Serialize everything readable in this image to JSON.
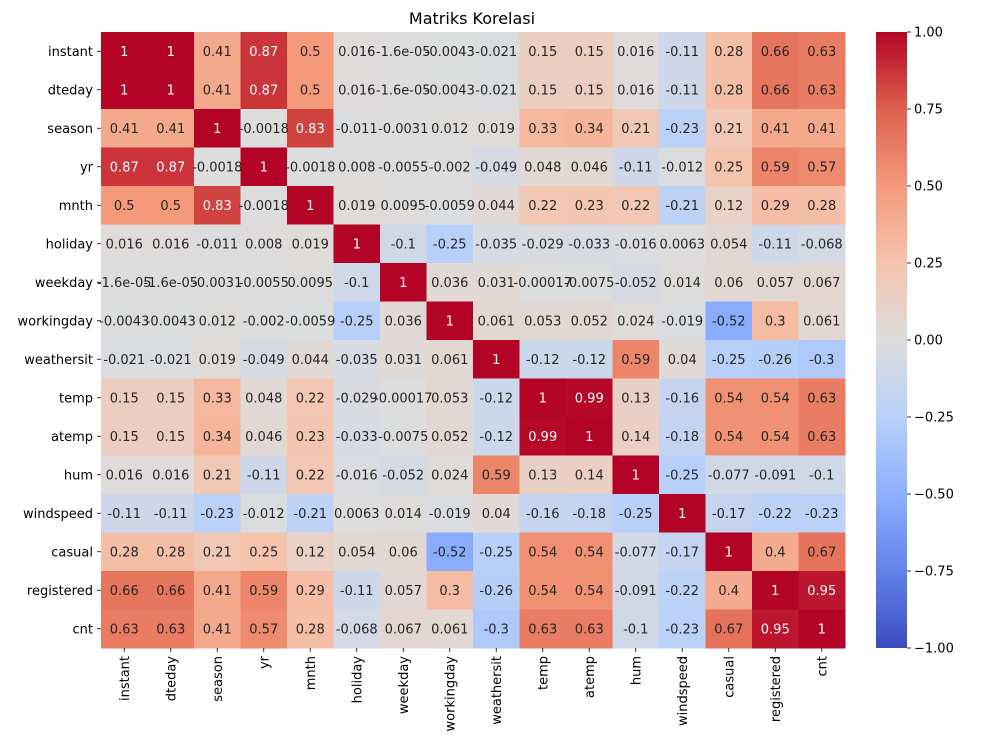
{
  "chart_data": {
    "type": "heatmap",
    "title": "Matriks Korelasi",
    "xlabel": "",
    "ylabel": "",
    "labels": [
      "instant",
      "dteday",
      "season",
      "yr",
      "mnth",
      "holiday",
      "weekday",
      "workingday",
      "weathersit",
      "temp",
      "atemp",
      "hum",
      "windspeed",
      "casual",
      "registered",
      "cnt"
    ],
    "matrix": [
      [
        1,
        1,
        0.41,
        0.87,
        0.5,
        0.016,
        -1.6e-05,
        -0.0043,
        -0.021,
        0.15,
        0.15,
        0.016,
        -0.11,
        0.28,
        0.66,
        0.63
      ],
      [
        1,
        1,
        0.41,
        0.87,
        0.5,
        0.016,
        -1.6e-05,
        -0.0043,
        -0.021,
        0.15,
        0.15,
        0.016,
        -0.11,
        0.28,
        0.66,
        0.63
      ],
      [
        0.41,
        0.41,
        1,
        -0.0018,
        0.83,
        -0.011,
        -0.0031,
        0.012,
        0.019,
        0.33,
        0.34,
        0.21,
        -0.23,
        0.21,
        0.41,
        0.41
      ],
      [
        0.87,
        0.87,
        -0.0018,
        1,
        -0.0018,
        0.008,
        -0.0055,
        -0.002,
        -0.049,
        0.048,
        0.046,
        -0.11,
        -0.012,
        0.25,
        0.59,
        0.57
      ],
      [
        0.5,
        0.5,
        0.83,
        -0.0018,
        1,
        0.019,
        0.0095,
        -0.0059,
        0.044,
        0.22,
        0.23,
        0.22,
        -0.21,
        0.12,
        0.29,
        0.28
      ],
      [
        0.016,
        0.016,
        -0.011,
        0.008,
        0.019,
        1,
        -0.1,
        -0.25,
        -0.035,
        -0.029,
        -0.033,
        -0.016,
        0.0063,
        0.054,
        -0.11,
        -0.068
      ],
      [
        -1.6e-05,
        -1.6e-05,
        -0.0031,
        -0.0055,
        0.0095,
        -0.1,
        1,
        0.036,
        0.031,
        -0.00017,
        -0.0075,
        -0.052,
        0.014,
        0.06,
        0.057,
        0.067
      ],
      [
        -0.0043,
        -0.0043,
        0.012,
        -0.002,
        -0.0059,
        -0.25,
        0.036,
        1,
        0.061,
        0.053,
        0.052,
        0.024,
        -0.019,
        -0.52,
        0.3,
        0.061
      ],
      [
        -0.021,
        -0.021,
        0.019,
        -0.049,
        0.044,
        -0.035,
        0.031,
        0.061,
        1,
        -0.12,
        -0.12,
        0.59,
        0.04,
        -0.25,
        -0.26,
        -0.3
      ],
      [
        0.15,
        0.15,
        0.33,
        0.048,
        0.22,
        -0.029,
        -0.00017,
        0.053,
        -0.12,
        1,
        0.99,
        0.13,
        -0.16,
        0.54,
        0.54,
        0.63
      ],
      [
        0.15,
        0.15,
        0.34,
        0.046,
        0.23,
        -0.033,
        -0.0075,
        0.052,
        -0.12,
        0.99,
        1,
        0.14,
        -0.18,
        0.54,
        0.54,
        0.63
      ],
      [
        0.016,
        0.016,
        0.21,
        -0.11,
        0.22,
        -0.016,
        -0.052,
        0.024,
        0.59,
        0.13,
        0.14,
        1,
        -0.25,
        -0.077,
        -0.091,
        -0.1
      ],
      [
        -0.11,
        -0.11,
        -0.23,
        -0.012,
        -0.21,
        0.0063,
        0.014,
        -0.019,
        0.04,
        -0.16,
        -0.18,
        -0.25,
        1,
        -0.17,
        -0.22,
        -0.23
      ],
      [
        0.28,
        0.28,
        0.21,
        0.25,
        0.12,
        0.054,
        0.06,
        -0.52,
        -0.25,
        0.54,
        0.54,
        -0.077,
        -0.17,
        1,
        0.4,
        0.67
      ],
      [
        0.66,
        0.66,
        0.41,
        0.59,
        0.29,
        -0.11,
        0.057,
        0.3,
        -0.26,
        0.54,
        0.54,
        -0.091,
        -0.22,
        0.4,
        1,
        0.95
      ],
      [
        0.63,
        0.63,
        0.41,
        0.57,
        0.28,
        -0.068,
        0.067,
        0.061,
        -0.3,
        0.63,
        0.63,
        -0.1,
        -0.23,
        0.67,
        0.95,
        1
      ]
    ],
    "annotations": [
      [
        "1",
        "1",
        "0.41",
        "0.87",
        "0.5",
        "0.016",
        "-1.6e-05",
        "-0.0043",
        "-0.021",
        "0.15",
        "0.15",
        "0.016",
        "-0.11",
        "0.28",
        "0.66",
        "0.63"
      ],
      [
        "1",
        "1",
        "0.41",
        "0.87",
        "0.5",
        "0.016",
        "-1.6e-05",
        "-0.0043",
        "-0.021",
        "0.15",
        "0.15",
        "0.016",
        "-0.11",
        "0.28",
        "0.66",
        "0.63"
      ],
      [
        "0.41",
        "0.41",
        "1",
        "-0.0018",
        "0.83",
        "-0.011",
        "-0.0031",
        "0.012",
        "0.019",
        "0.33",
        "0.34",
        "0.21",
        "-0.23",
        "0.21",
        "0.41",
        "0.41"
      ],
      [
        "0.87",
        "0.87",
        "-0.0018",
        "1",
        "-0.0018",
        "0.008",
        "-0.0055",
        "-0.002",
        "-0.049",
        "0.048",
        "0.046",
        "-0.11",
        "-0.012",
        "0.25",
        "0.59",
        "0.57"
      ],
      [
        "0.5",
        "0.5",
        "0.83",
        "-0.0018",
        "1",
        "0.019",
        "0.0095",
        "-0.0059",
        "0.044",
        "0.22",
        "0.23",
        "0.22",
        "-0.21",
        "0.12",
        "0.29",
        "0.28"
      ],
      [
        "0.016",
        "0.016",
        "-0.011",
        "0.008",
        "0.019",
        "1",
        "-0.1",
        "-0.25",
        "-0.035",
        "-0.029",
        "-0.033",
        "-0.016",
        "0.0063",
        "0.054",
        "-0.11",
        "-0.068"
      ],
      [
        "-1.6e-05",
        "-1.6e-05",
        "-0.0031",
        "-0.0055",
        "0.0095",
        "-0.1",
        "1",
        "0.036",
        "0.031",
        "-0.00017",
        "-0.0075",
        "-0.052",
        "0.014",
        "0.06",
        "0.057",
        "0.067"
      ],
      [
        "-0.0043",
        "-0.0043",
        "0.012",
        "-0.002",
        "-0.0059",
        "-0.25",
        "0.036",
        "1",
        "0.061",
        "0.053",
        "0.052",
        "0.024",
        "-0.019",
        "-0.52",
        "0.3",
        "0.061"
      ],
      [
        "-0.021",
        "-0.021",
        "0.019",
        "-0.049",
        "0.044",
        "-0.035",
        "0.031",
        "0.061",
        "1",
        "-0.12",
        "-0.12",
        "0.59",
        "0.04",
        "-0.25",
        "-0.26",
        "-0.3"
      ],
      [
        "0.15",
        "0.15",
        "0.33",
        "0.048",
        "0.22",
        "-0.029",
        "-0.00017",
        "0.053",
        "-0.12",
        "1",
        "0.99",
        "0.13",
        "-0.16",
        "0.54",
        "0.54",
        "0.63"
      ],
      [
        "0.15",
        "0.15",
        "0.34",
        "0.046",
        "0.23",
        "-0.033",
        "-0.0075",
        "0.052",
        "-0.12",
        "0.99",
        "1",
        "0.14",
        "-0.18",
        "0.54",
        "0.54",
        "0.63"
      ],
      [
        "0.016",
        "0.016",
        "0.21",
        "-0.11",
        "0.22",
        "-0.016",
        "-0.052",
        "0.024",
        "0.59",
        "0.13",
        "0.14",
        "1",
        "-0.25",
        "-0.077",
        "-0.091",
        "-0.1"
      ],
      [
        "-0.11",
        "-0.11",
        "-0.23",
        "-0.012",
        "-0.21",
        "0.0063",
        "0.014",
        "-0.019",
        "0.04",
        "-0.16",
        "-0.18",
        "-0.25",
        "1",
        "-0.17",
        "-0.22",
        "-0.23"
      ],
      [
        "0.28",
        "0.28",
        "0.21",
        "0.25",
        "0.12",
        "0.054",
        "0.06",
        "-0.52",
        "-0.25",
        "0.54",
        "0.54",
        "-0.077",
        "-0.17",
        "1",
        "0.4",
        "0.67"
      ],
      [
        "0.66",
        "0.66",
        "0.41",
        "0.59",
        "0.29",
        "-0.11",
        "0.057",
        "0.3",
        "-0.26",
        "0.54",
        "0.54",
        "-0.091",
        "-0.22",
        "0.4",
        "1",
        "0.95"
      ],
      [
        "0.63",
        "0.63",
        "0.41",
        "0.57",
        "0.28",
        "-0.068",
        "0.067",
        "0.061",
        "-0.3",
        "0.63",
        "0.63",
        "-0.1",
        "-0.23",
        "0.67",
        "0.95",
        "1"
      ]
    ],
    "colormap": "coolwarm",
    "vmin": -1,
    "vmax": 1,
    "colorbar_ticks": [
      1.0,
      0.75,
      0.5,
      0.25,
      0.0,
      -0.25,
      -0.5,
      -0.75,
      -1.0
    ],
    "colorbar_tick_labels": [
      "1.00",
      "0.75",
      "0.50",
      "0.25",
      "0.00",
      "−0.25",
      "−0.50",
      "−0.75",
      "−1.00"
    ],
    "grid": false,
    "legend": "colorbar-right"
  }
}
